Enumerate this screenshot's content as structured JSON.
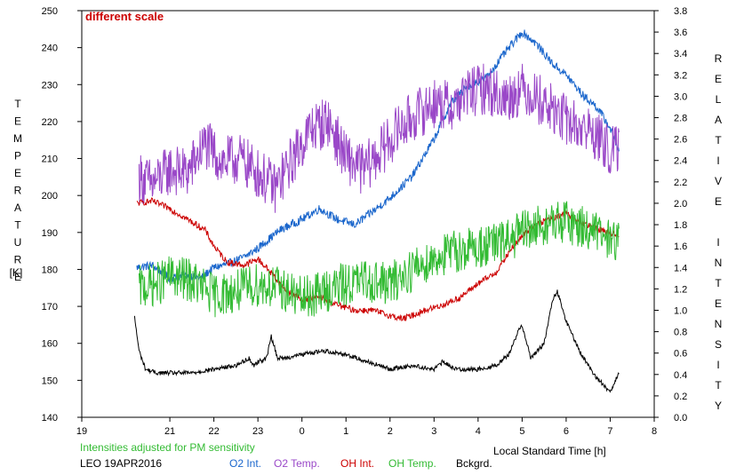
{
  "chart_data": {
    "type": "line",
    "note": "different scale",
    "xlabel": "Local Standard Time [h]",
    "ylabel_left": "TEMPERATURE",
    "ylabel_left_unit": "[K]",
    "ylabel_right": "RELATIVE INTENSITY",
    "subtitle": "Intensities adjusted for PM sensitivity",
    "station_date": "LEO 19APR2016",
    "x_ticks": [
      "19",
      "21",
      "22",
      "23",
      "0",
      "1",
      "2",
      "3",
      "4",
      "5",
      "6",
      "7",
      "8"
    ],
    "x_tick_values": [
      19,
      21,
      22,
      23,
      24,
      25,
      26,
      27,
      28,
      29,
      30,
      31,
      32
    ],
    "xlim": [
      19,
      32
    ],
    "ylim_left": [
      140,
      250
    ],
    "y_ticks_left": [
      140,
      150,
      160,
      170,
      180,
      190,
      200,
      210,
      220,
      230,
      240,
      250
    ],
    "ylim_right": [
      0.0,
      3.8
    ],
    "y_ticks_right": [
      "0.0",
      "0.2",
      "0.4",
      "0.6",
      "0.8",
      "1.0",
      "1.2",
      "1.4",
      "1.6",
      "1.8",
      "2.0",
      "2.2",
      "2.4",
      "2.6",
      "2.8",
      "3.0",
      "3.2",
      "3.4",
      "3.6",
      "3.8"
    ],
    "legend_placement": "bottom",
    "series": [
      {
        "name": "O2 Int.",
        "axis": "right",
        "color": "#1a66cc",
        "noise": 0.04,
        "x": [
          20.25,
          20.6,
          21.0,
          21.4,
          21.7,
          22.0,
          22.3,
          22.7,
          23.0,
          23.5,
          24.0,
          24.4,
          24.8,
          25.2,
          25.6,
          26.0,
          26.5,
          27.0,
          27.4,
          27.8,
          28.2,
          28.6,
          28.8,
          29.0,
          29.3,
          29.7,
          30.0,
          30.4,
          30.7,
          31.0,
          31.2
        ],
        "y": [
          1.4,
          1.42,
          1.3,
          1.33,
          1.3,
          1.4,
          1.43,
          1.5,
          1.58,
          1.75,
          1.85,
          1.95,
          1.85,
          1.8,
          1.92,
          2.05,
          2.25,
          2.6,
          2.95,
          3.1,
          3.18,
          3.4,
          3.5,
          3.6,
          3.5,
          3.3,
          3.2,
          3.0,
          2.9,
          2.7,
          2.5
        ]
      },
      {
        "name": "O2 Temp.",
        "axis": "left",
        "color": "#9a48c8",
        "noise": 7,
        "x": [
          20.3,
          20.6,
          21.0,
          21.4,
          21.8,
          22.2,
          22.6,
          23.0,
          23.4,
          23.8,
          24.2,
          24.6,
          25.0,
          25.4,
          25.8,
          26.2,
          26.6,
          27.0,
          27.4,
          27.8,
          28.2,
          28.6,
          29.0,
          29.4,
          29.8,
          30.2,
          30.6,
          31.0,
          31.2
        ],
        "y": [
          205,
          203,
          207,
          206,
          214,
          209,
          210,
          206,
          202,
          210,
          218,
          220,
          210,
          207,
          212,
          218,
          222,
          225,
          224,
          228,
          229,
          226,
          229,
          226,
          222,
          219,
          217,
          212,
          212
        ]
      },
      {
        "name": "OH Int.",
        "axis": "right",
        "color": "#cc0000",
        "noise": 0.03,
        "x": [
          20.25,
          20.6,
          21.0,
          21.4,
          21.8,
          22.0,
          22.3,
          22.7,
          23.0,
          23.3,
          23.6,
          24.0,
          24.4,
          24.8,
          25.2,
          25.6,
          26.0,
          26.3,
          26.8,
          27.2,
          27.6,
          28.0,
          28.4,
          28.8,
          29.2,
          29.6,
          30.0,
          30.4,
          30.8,
          31.2
        ],
        "y": [
          2.0,
          2.02,
          1.95,
          1.85,
          1.75,
          1.6,
          1.45,
          1.42,
          1.48,
          1.35,
          1.2,
          1.1,
          1.12,
          1.05,
          1.0,
          1.0,
          0.95,
          0.92,
          1.0,
          1.05,
          1.12,
          1.25,
          1.35,
          1.6,
          1.78,
          1.85,
          1.9,
          1.8,
          1.75,
          1.7
        ]
      },
      {
        "name": "OH Temp.",
        "axis": "left",
        "color": "#33bb33",
        "noise": 6,
        "x": [
          20.3,
          20.7,
          21.0,
          21.5,
          22.0,
          22.5,
          23.0,
          23.5,
          24.0,
          24.5,
          25.0,
          25.5,
          26.0,
          26.5,
          27.0,
          27.5,
          28.0,
          28.5,
          29.0,
          29.5,
          30.0,
          30.5,
          31.0,
          31.2
        ],
        "y": [
          175,
          176,
          178,
          177,
          173,
          174,
          176,
          175,
          172,
          174,
          176,
          177,
          176,
          180,
          183,
          185,
          186,
          187,
          190,
          192,
          193,
          191,
          188,
          188
        ]
      },
      {
        "name": "Bckgrd.",
        "axis": "left",
        "color": "#000000",
        "noise": 0.6,
        "x": [
          20.2,
          20.3,
          20.45,
          20.7,
          21.0,
          21.5,
          22.0,
          22.5,
          22.8,
          22.9,
          23.0,
          23.2,
          23.3,
          23.45,
          23.6,
          24.0,
          24.5,
          25.0,
          25.5,
          26.0,
          26.5,
          27.0,
          27.2,
          27.5,
          28.0,
          28.4,
          28.7,
          28.9,
          29.0,
          29.2,
          29.35,
          29.5,
          29.7,
          29.8,
          29.9,
          30.0,
          30.3,
          30.6,
          30.9,
          31.0,
          31.2
        ],
        "y": [
          167,
          158,
          153,
          152,
          152,
          152,
          153,
          154,
          156,
          154,
          155,
          156,
          162,
          156,
          156,
          157,
          158,
          157,
          155,
          153,
          154,
          153,
          155,
          153,
          153,
          154,
          157,
          163,
          165,
          156,
          158,
          160,
          172,
          174,
          170,
          166,
          158,
          152,
          148,
          147,
          152
        ]
      }
    ]
  }
}
